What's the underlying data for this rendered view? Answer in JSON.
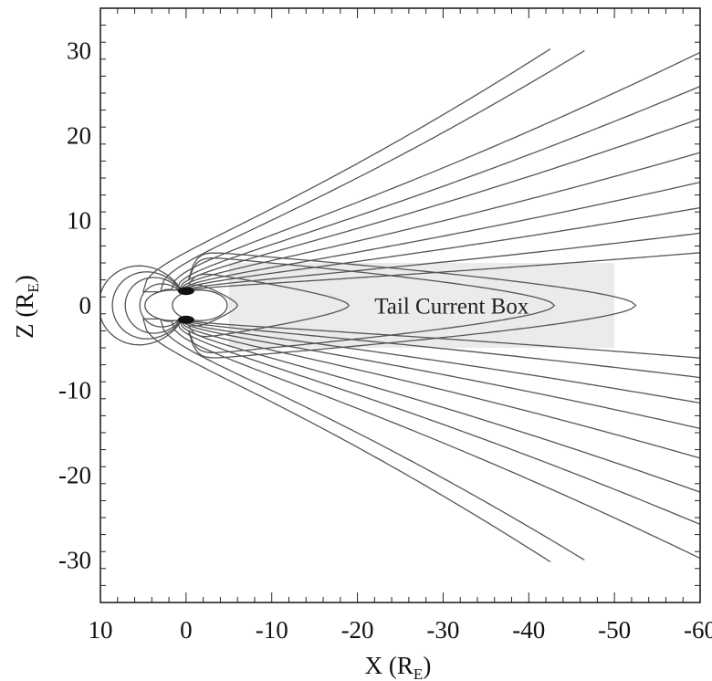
{
  "chart_data": {
    "type": "line",
    "title": "",
    "xlabel": {
      "main": "X (R",
      "sub": "E",
      "close": ")"
    },
    "ylabel": {
      "main": "Z (R",
      "sub": "E",
      "close": ")"
    },
    "xlim": [
      10,
      -60
    ],
    "ylim": [
      -35,
      35
    ],
    "x_ticks": [
      10,
      0,
      -10,
      -20,
      -30,
      -40,
      -50,
      -60
    ],
    "y_ticks": [
      30,
      20,
      10,
      0,
      -10,
      -20,
      -30
    ],
    "x_tick_labels": [
      "10",
      "0",
      "-10",
      "-20",
      "-30",
      "-40",
      "-50",
      "-60"
    ],
    "y_tick_labels": [
      "30",
      "20",
      "10",
      "0",
      "-10",
      "-20",
      "-30"
    ],
    "annotations": [
      {
        "text": "Tail Current Box",
        "x": -31,
        "z": 0
      }
    ],
    "tail_current_box": {
      "x_range": [
        -5,
        -50
      ],
      "z_range": [
        -5,
        5
      ]
    },
    "earth": {
      "x": 0,
      "z": 0,
      "radius": 2
    },
    "closed_field_lines": [
      {
        "name": "dayside",
        "x_nose": 3.3
      },
      {
        "name": "dayside",
        "x_nose": 4.8
      },
      {
        "name": "dayside",
        "x_nose": 6.5
      },
      {
        "name": "dayside",
        "x_nose": 8.0
      },
      {
        "name": "dayside",
        "x_nose": 9.6
      },
      {
        "name": "nightside",
        "x_nose": -6.0
      },
      {
        "name": "nightside",
        "x_nose": -19.0
      },
      {
        "name": "nightside",
        "x_nose": -43.0
      },
      {
        "name": "nightside",
        "x_nose": -52.5
      }
    ],
    "open_field_lines": [
      {
        "x_start": 5.0,
        "z_far": 30.2,
        "x_far": -42.5
      },
      {
        "x_start": 3.0,
        "z_far": 30.0,
        "x_far": -46.5
      },
      {
        "x_start": 1.8,
        "z_far": 29.8,
        "x_far": -60
      },
      {
        "x_start": 1.2,
        "z_far": 25.8,
        "x_far": -60
      },
      {
        "x_start": 0.9,
        "z_far": 22.0,
        "x_far": -60
      },
      {
        "x_start": 0.7,
        "z_far": 18.0,
        "x_far": -60
      },
      {
        "x_start": 0.5,
        "z_far": 14.5,
        "x_far": -60
      },
      {
        "x_start": 0.4,
        "z_far": 11.5,
        "x_far": -60
      },
      {
        "x_start": 0.3,
        "z_far": 8.5,
        "x_far": -60
      },
      {
        "x_start": 0.2,
        "z_far": 6.2,
        "x_far": -60
      }
    ],
    "colors": {
      "lines": "#555555",
      "box_fill": "#ebebeb",
      "frame": "#222222"
    },
    "grid": false,
    "legend": "none"
  }
}
